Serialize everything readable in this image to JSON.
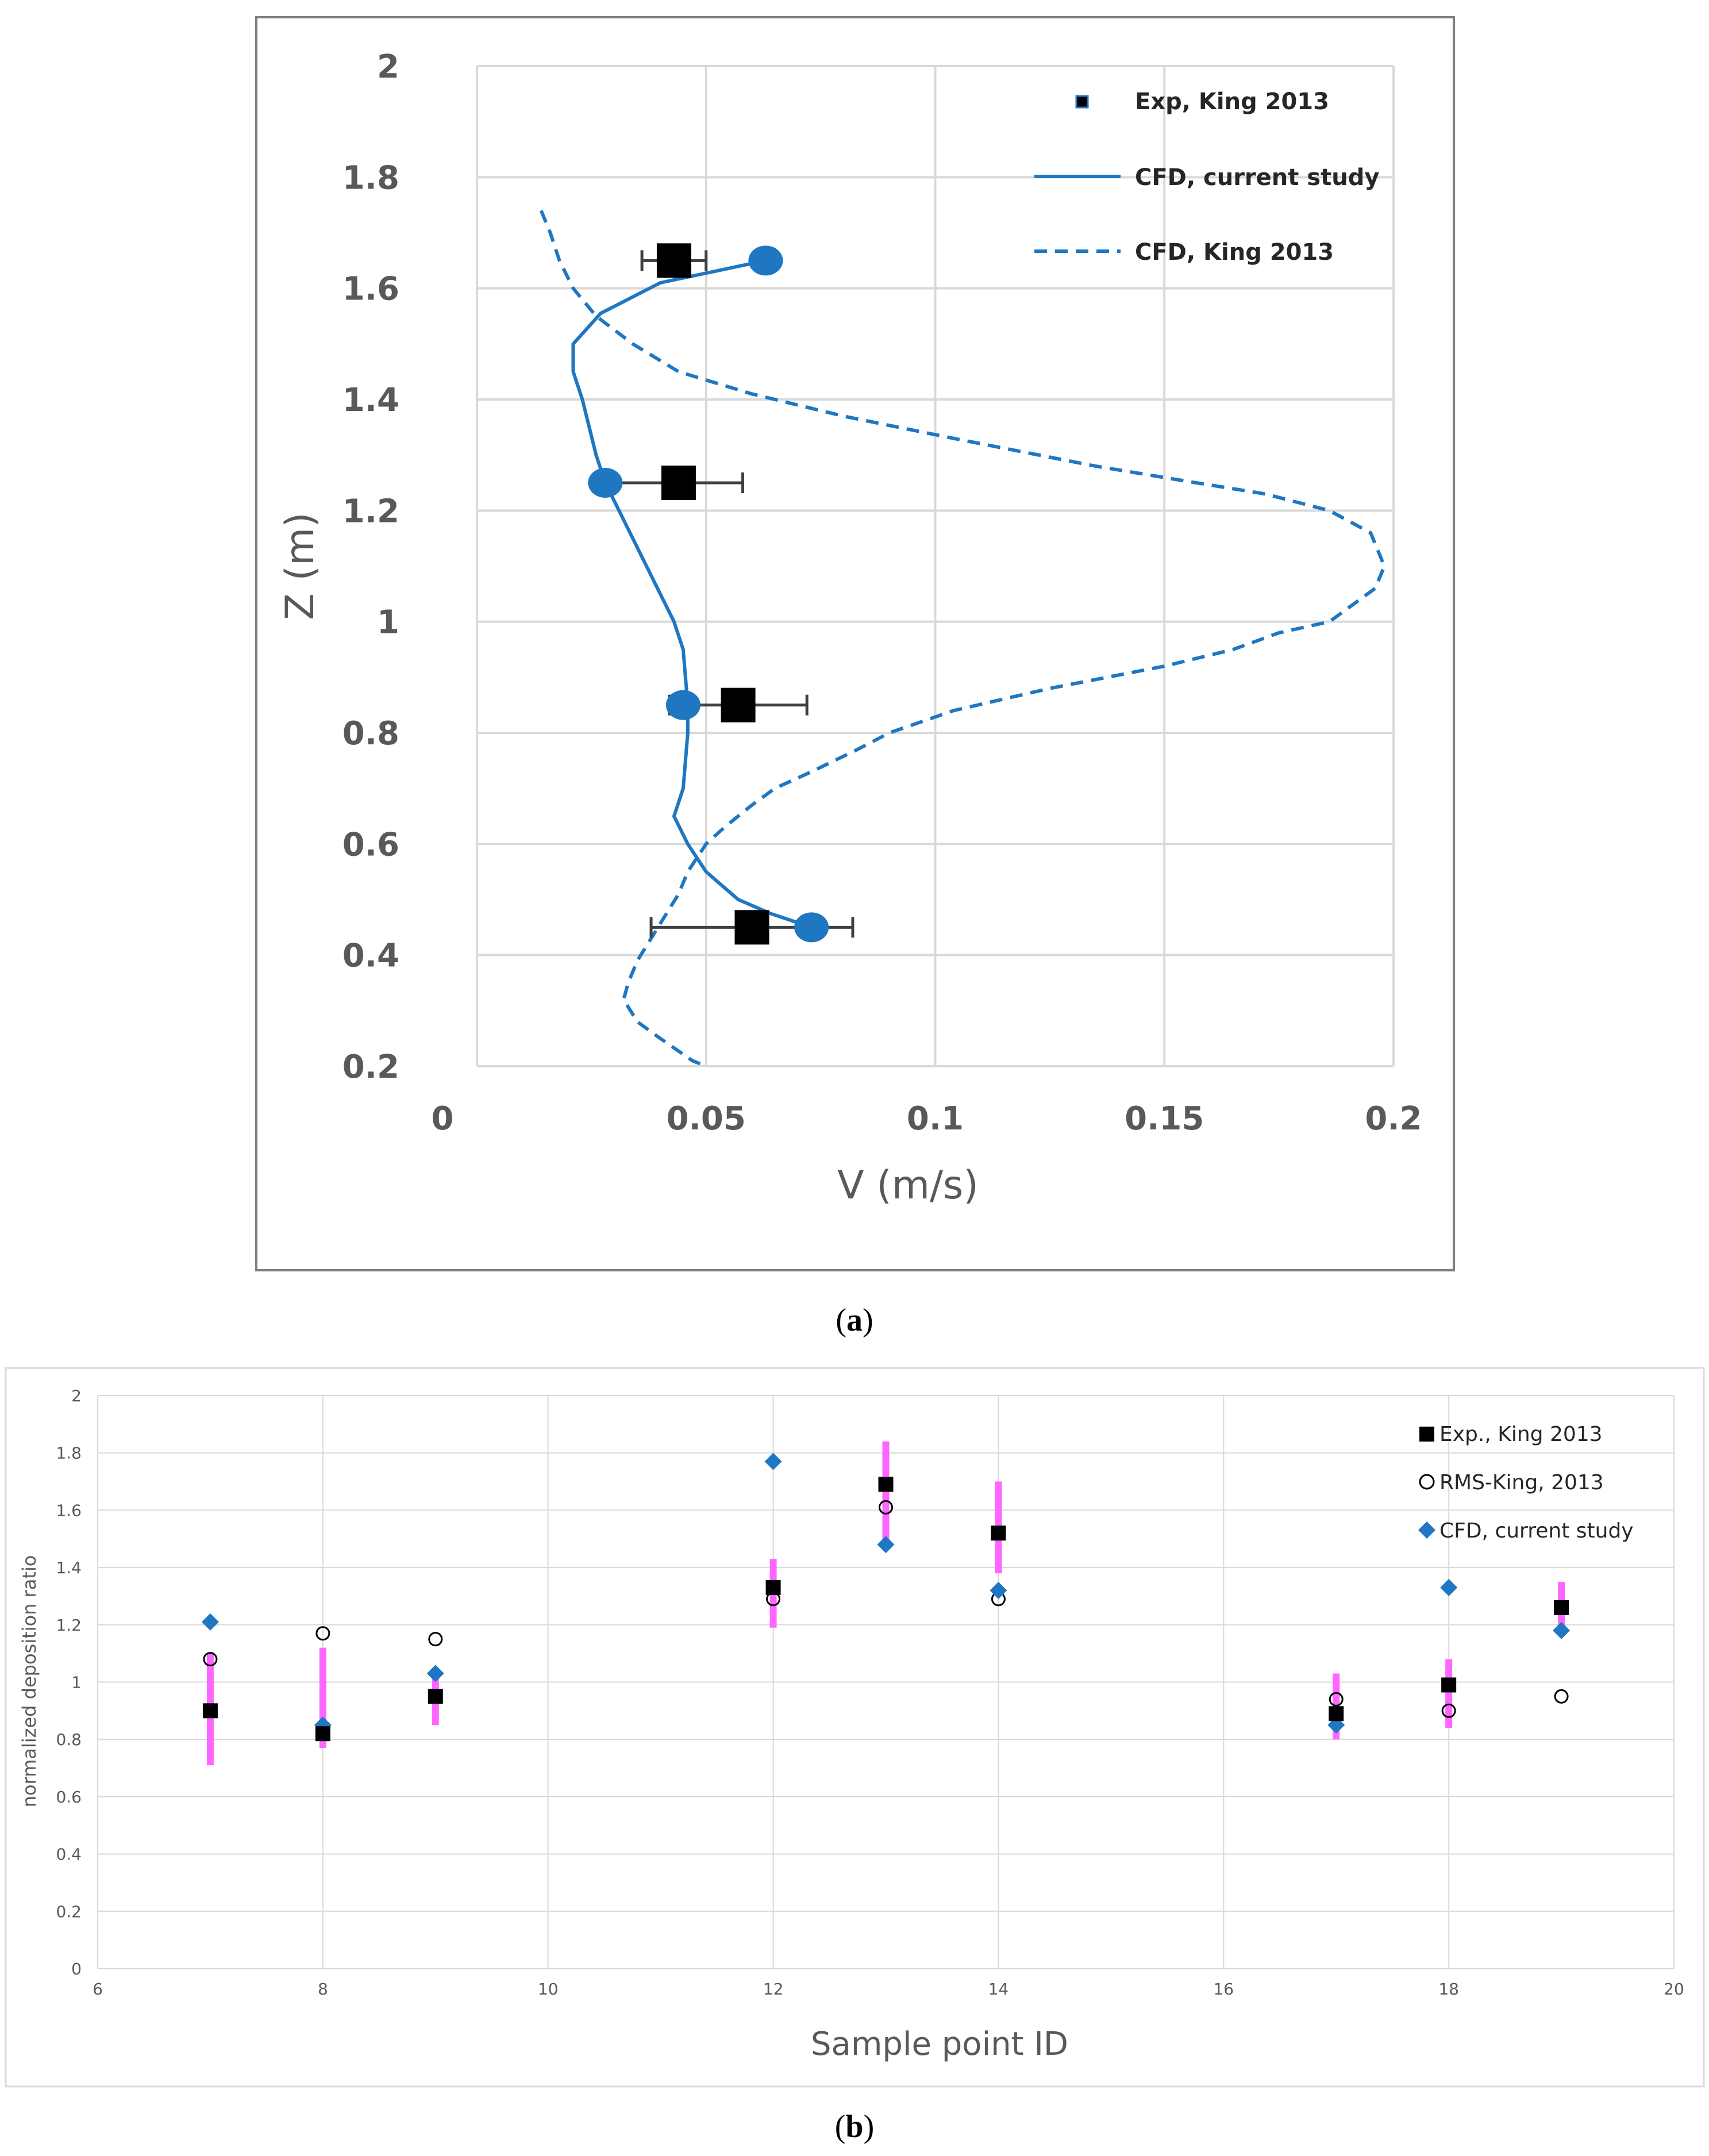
{
  "chart_data": [
    {
      "panel_label": "a",
      "type": "line",
      "title": "",
      "xlabel": "V (m/s)",
      "ylabel": "Z (m)",
      "xlim": [
        0,
        0.2
      ],
      "ylim": [
        0.2,
        2
      ],
      "xticks": [
        "0",
        "0.05",
        "0.1",
        "0.15",
        "0.2"
      ],
      "yticks": [
        "0.2",
        "0.4",
        "0.6",
        "0.8",
        "1",
        "1.2",
        "1.4",
        "1.6",
        "1.8",
        "2"
      ],
      "xtick_values": [
        0,
        0.05,
        0.1,
        0.15,
        0.2
      ],
      "ytick_values": [
        0.2,
        0.4,
        0.6,
        0.8,
        1.0,
        1.2,
        1.4,
        1.6,
        1.8,
        2.0
      ],
      "grid": true,
      "legend_position": "top-right",
      "series": [
        {
          "name": "Exp, King 2013",
          "kind": "points_with_xerror",
          "color": "#000000",
          "points": [
            {
              "x": 0.043,
              "y": 1.65,
              "err_low": 0.007,
              "err_high": 0.007
            },
            {
              "x": 0.044,
              "y": 1.25,
              "err_low": 0.014,
              "err_high": 0.014
            },
            {
              "x": 0.057,
              "y": 0.85,
              "err_low": 0.015,
              "err_high": 0.015
            },
            {
              "x": 0.06,
              "y": 0.45,
              "err_low": 0.022,
              "err_high": 0.022
            }
          ]
        },
        {
          "name": "CFD, current study",
          "kind": "solid_line",
          "color": "#1F77C2",
          "x": [
            0.063,
            0.04,
            0.027,
            0.021,
            0.021,
            0.023,
            0.026,
            0.028,
            0.034,
            0.04,
            0.043,
            0.045,
            0.046,
            0.046,
            0.045,
            0.043,
            0.046,
            0.05,
            0.057,
            0.064,
            0.073
          ],
          "y": [
            1.65,
            1.61,
            1.555,
            1.5,
            1.45,
            1.4,
            1.3,
            1.25,
            1.15,
            1.05,
            1.0,
            0.95,
            0.85,
            0.8,
            0.7,
            0.65,
            0.6,
            0.55,
            0.5,
            0.475,
            0.45
          ]
        },
        {
          "name": "CFD current study markers",
          "kind": "markers",
          "color": "#1F77C2",
          "x": [
            0.063,
            0.028,
            0.045,
            0.073
          ],
          "y": [
            1.65,
            1.25,
            0.85,
            0.45
          ]
        },
        {
          "name": "CFD, King 2013",
          "kind": "dashed_line",
          "color": "#1F77C2",
          "x": [
            0.014,
            0.016,
            0.018,
            0.021,
            0.026,
            0.034,
            0.044,
            0.06,
            0.08,
            0.104,
            0.135,
            0.157,
            0.172,
            0.186,
            0.195,
            0.198,
            0.196,
            0.186,
            0.175,
            0.165,
            0.15,
            0.125,
            0.104,
            0.09,
            0.083,
            0.073,
            0.065,
            0.06,
            0.054,
            0.05,
            0.046,
            0.044,
            0.041,
            0.038,
            0.035,
            0.033,
            0.032,
            0.035,
            0.04,
            0.047,
            0.05
          ],
          "y": [
            1.74,
            1.7,
            1.65,
            1.6,
            1.55,
            1.5,
            1.45,
            1.41,
            1.37,
            1.33,
            1.28,
            1.25,
            1.23,
            1.2,
            1.16,
            1.1,
            1.06,
            1.0,
            0.98,
            0.95,
            0.92,
            0.88,
            0.84,
            0.8,
            0.77,
            0.73,
            0.7,
            0.67,
            0.63,
            0.6,
            0.55,
            0.51,
            0.47,
            0.43,
            0.39,
            0.35,
            0.32,
            0.28,
            0.25,
            0.21,
            0.2
          ]
        }
      ],
      "legend": [
        {
          "label": "Exp, King 2013",
          "style": "square-marker"
        },
        {
          "label": "CFD, current study",
          "style": "solid"
        },
        {
          "label": "CFD, King 2013",
          "style": "dashed"
        }
      ]
    },
    {
      "panel_label": "b",
      "type": "scatter",
      "title": "",
      "xlabel": "Sample point ID",
      "ylabel": "normalized deposition ratio",
      "xlim": [
        6,
        20
      ],
      "ylim": [
        0,
        2
      ],
      "xticks": [
        "6",
        "8",
        "10",
        "12",
        "14",
        "16",
        "18",
        "20"
      ],
      "yticks": [
        "0",
        "0.2",
        "0.4",
        "0.6",
        "0.8",
        "1",
        "1.2",
        "1.4",
        "1.6",
        "1.8",
        "2"
      ],
      "xtick_values": [
        6,
        8,
        10,
        12,
        14,
        16,
        18,
        20
      ],
      "ytick_values": [
        0,
        0.2,
        0.4,
        0.6,
        0.8,
        1.0,
        1.2,
        1.4,
        1.6,
        1.8,
        2.0
      ],
      "grid": true,
      "legend_position": "top-right",
      "x": [
        7,
        8,
        9,
        12,
        13,
        14,
        17,
        18,
        19
      ],
      "series": [
        {
          "name": "Exp., King 2013",
          "marker": "filled-square",
          "color": "#000000",
          "values": [
            0.9,
            0.82,
            0.95,
            1.33,
            1.69,
            1.52,
            0.89,
            0.99,
            1.26
          ]
        },
        {
          "name": "RMS-King, 2013",
          "marker": "open-circle",
          "color": "#000000",
          "values": [
            1.08,
            1.17,
            1.15,
            1.29,
            1.61,
            1.29,
            0.94,
            0.9,
            0.95
          ]
        },
        {
          "name": "CFD, current study",
          "marker": "diamond",
          "color": "#1F77C2",
          "values": [
            1.21,
            0.85,
            1.03,
            1.77,
            1.48,
            1.32,
            0.85,
            1.33,
            1.18
          ]
        },
        {
          "name": "error bars",
          "kind": "vertical-range",
          "color": "#FF66FF",
          "low": [
            0.71,
            0.77,
            0.85,
            1.19,
            1.49,
            1.38,
            0.8,
            0.84,
            1.18
          ],
          "high": [
            1.1,
            1.12,
            1.05,
            1.43,
            1.84,
            1.7,
            1.03,
            1.08,
            1.35
          ]
        }
      ],
      "legend": [
        {
          "label": "Exp., King 2013",
          "style": "filled-square"
        },
        {
          "label": "RMS-King, 2013",
          "style": "open-circle"
        },
        {
          "label": "CFD, current study",
          "style": "diamond"
        }
      ]
    }
  ]
}
